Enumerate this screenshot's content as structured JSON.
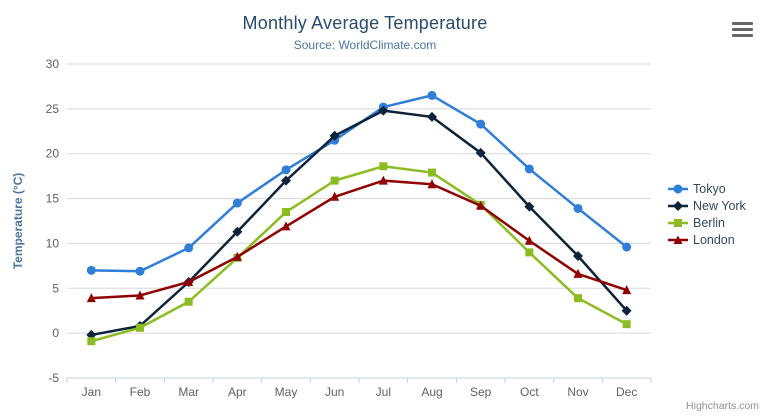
{
  "header": {
    "title": "Monthly Average Temperature",
    "subtitle": "Source: WorldClimate.com"
  },
  "credits_label": "Highcharts.com",
  "colors": {
    "title": "#274b6d",
    "subtitle": "#4d759e",
    "axis_title": "#4d759e",
    "tick_label": "#606060",
    "gridline": "#d8d8d8",
    "axis_line": "#c0d0e0",
    "menu_icon": "#666666"
  },
  "chart_data": {
    "type": "line",
    "title": "Monthly Average Temperature",
    "subtitle": "Source: WorldClimate.com",
    "categories": [
      "Jan",
      "Feb",
      "Mar",
      "Apr",
      "May",
      "Jun",
      "Jul",
      "Aug",
      "Sep",
      "Oct",
      "Nov",
      "Dec"
    ],
    "series": [
      {
        "name": "Tokyo",
        "color": "#2f7ed8",
        "marker": "circle",
        "values": [
          7.0,
          6.9,
          9.5,
          14.5,
          18.2,
          21.5,
          25.2,
          26.5,
          23.3,
          18.3,
          13.9,
          9.6
        ]
      },
      {
        "name": "New York",
        "color": "#0d233a",
        "marker": "diamond",
        "values": [
          -0.2,
          0.8,
          5.7,
          11.3,
          17.0,
          22.0,
          24.8,
          24.1,
          20.1,
          14.1,
          8.6,
          2.5
        ]
      },
      {
        "name": "Berlin",
        "color": "#8bbc21",
        "marker": "square",
        "values": [
          -0.9,
          0.6,
          3.5,
          8.4,
          13.5,
          17.0,
          18.6,
          17.9,
          14.3,
          9.0,
          3.9,
          1.0
        ]
      },
      {
        "name": "London",
        "color": "#910000",
        "marker": "triangle",
        "values": [
          3.9,
          4.2,
          5.7,
          8.5,
          11.9,
          15.2,
          17.0,
          16.6,
          14.2,
          10.3,
          6.6,
          4.8
        ]
      }
    ],
    "xlabel": "",
    "ylabel": "Temperature (°C)",
    "ylim": [
      -5,
      30
    ],
    "yticks": [
      -5,
      0,
      5,
      10,
      15,
      20,
      25,
      30
    ],
    "grid": true,
    "legend_position": "right"
  }
}
